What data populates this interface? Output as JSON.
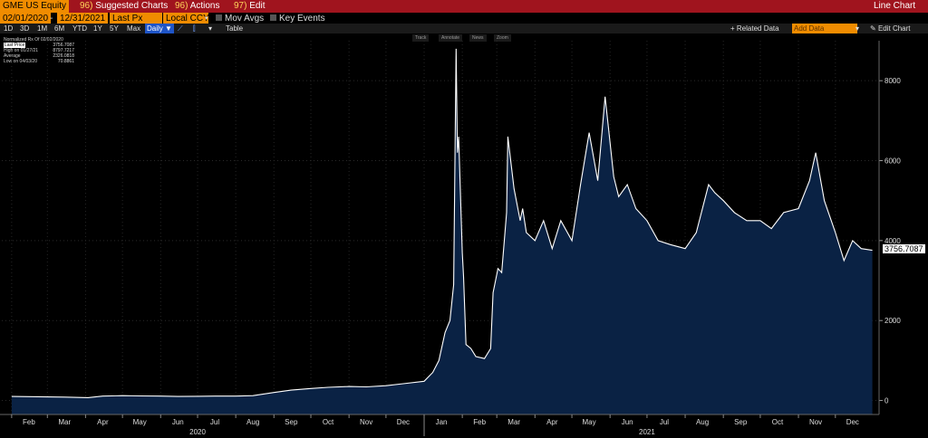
{
  "header": {
    "ticker": "GME US Equity",
    "suggested_num": "96)",
    "suggested_label": "Suggested Charts",
    "actions_num": "96)",
    "actions_label": "Actions",
    "edit_num": "97)",
    "edit_label": "Edit",
    "title": "Line Chart"
  },
  "controls": {
    "start_date": "02/01/2020",
    "separator": "-",
    "end_date": "12/31/2021",
    "field": "Last Px",
    "currency": "Local CCY",
    "mov_avgs": "Mov Avgs",
    "key_events": "Key Events",
    "ranges": [
      "1D",
      "3D",
      "1M",
      "6M",
      "YTD",
      "1Y",
      "5Y",
      "Max"
    ],
    "frequency": "Daily",
    "table": "Table",
    "related_data": "+ Related Data",
    "add_data": "Add Data",
    "edit_chart": "Edit Chart"
  },
  "chart_tools": [
    "Track",
    "Annotate",
    "News",
    "Zoom"
  ],
  "legend": {
    "title": "Normalized Rx Of 02/02/2020",
    "rows": [
      {
        "label": "Last Price",
        "value": "3756.7087"
      },
      {
        "label": "High on 01/27/21",
        "value": "8797.7217"
      },
      {
        "label": "Average",
        "value": "2326.0818"
      },
      {
        "label": "Low on 04/03/20",
        "value": "70.8861"
      }
    ]
  },
  "colors": {
    "line": "#ffffff",
    "fill": "#0a2244",
    "header": "#a0141e",
    "accent": "#f08c00"
  },
  "chart_data": {
    "type": "area",
    "title": "",
    "xlabel": "",
    "ylabel": "",
    "ylim": [
      -350,
      9000
    ],
    "yticks": [
      0,
      2000,
      4000,
      6000,
      8000
    ],
    "ytick_labels": [
      "0",
      "2000",
      "4000",
      "6000",
      "8000"
    ],
    "last_value_label": "3756.7087",
    "grid": true,
    "month_labels": [
      "Feb",
      "Mar",
      "Apr",
      "May",
      "Jun",
      "Jul",
      "Aug",
      "Sep",
      "Oct",
      "Nov",
      "Dec",
      "Jan",
      "Feb",
      "Mar",
      "Apr",
      "May",
      "Jun",
      "Jul",
      "Aug",
      "Sep",
      "Oct",
      "Nov",
      "Dec"
    ],
    "year_labels": [
      "2020",
      "2021"
    ],
    "series": [
      {
        "name": "Last Price",
        "x": [
          "2020-02-01",
          "2020-02-15",
          "2020-03-01",
          "2020-03-15",
          "2020-04-03",
          "2020-04-15",
          "2020-05-01",
          "2020-05-15",
          "2020-06-01",
          "2020-06-15",
          "2020-07-01",
          "2020-07-15",
          "2020-08-01",
          "2020-08-15",
          "2020-09-01",
          "2020-09-15",
          "2020-10-01",
          "2020-10-15",
          "2020-11-01",
          "2020-11-15",
          "2020-12-01",
          "2020-12-15",
          "2021-01-01",
          "2021-01-08",
          "2021-01-13",
          "2021-01-18",
          "2021-01-22",
          "2021-01-25",
          "2021-01-27",
          "2021-01-28",
          "2021-01-29",
          "2021-02-01",
          "2021-02-02",
          "2021-02-04",
          "2021-02-08",
          "2021-02-12",
          "2021-02-19",
          "2021-02-24",
          "2021-02-26",
          "2021-03-02",
          "2021-03-05",
          "2021-03-09",
          "2021-03-10",
          "2021-03-15",
          "2021-03-20",
          "2021-03-22",
          "2021-03-25",
          "2021-04-01",
          "2021-04-08",
          "2021-04-15",
          "2021-04-22",
          "2021-05-01",
          "2021-05-08",
          "2021-05-15",
          "2021-05-22",
          "2021-05-28",
          "2021-06-04",
          "2021-06-08",
          "2021-06-15",
          "2021-06-22",
          "2021-07-01",
          "2021-07-10",
          "2021-07-20",
          "2021-08-01",
          "2021-08-10",
          "2021-08-20",
          "2021-08-25",
          "2021-09-01",
          "2021-09-10",
          "2021-09-20",
          "2021-10-01",
          "2021-10-10",
          "2021-10-20",
          "2021-11-01",
          "2021-11-10",
          "2021-11-15",
          "2021-11-22",
          "2021-12-01",
          "2021-12-08",
          "2021-12-15",
          "2021-12-22",
          "2021-12-31"
        ],
        "y": [
          100,
          95,
          90,
          85,
          71,
          110,
          120,
          115,
          110,
          100,
          105,
          110,
          110,
          120,
          200,
          260,
          300,
          330,
          350,
          340,
          370,
          420,
          480,
          700,
          1000,
          1700,
          2000,
          2900,
          8798,
          6200,
          6600,
          3700,
          3100,
          1400,
          1300,
          1100,
          1050,
          1300,
          2700,
          3300,
          3200,
          4700,
          6600,
          5300,
          4500,
          4800,
          4200,
          4000,
          4500,
          3800,
          4500,
          4000,
          5400,
          6700,
          5500,
          7600,
          5600,
          5100,
          5400,
          4800,
          4500,
          4000,
          3900,
          3800,
          4200,
          5400,
          5200,
          5000,
          4700,
          4500,
          4500,
          4300,
          4700,
          4800,
          5500,
          6200,
          5000,
          4200,
          3500,
          4000,
          3800,
          3757
        ]
      }
    ]
  }
}
